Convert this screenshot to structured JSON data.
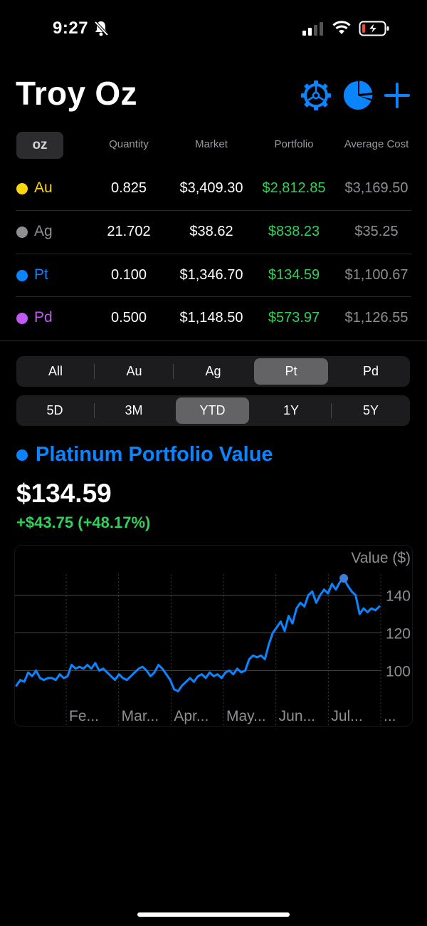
{
  "status_bar": {
    "time": "9:27",
    "icons": [
      "bell-off-icon",
      "signal-icon",
      "wifi-icon",
      "battery-charging-icon"
    ]
  },
  "header": {
    "title": "Troy Oz",
    "buttons": [
      "gear-icon",
      "pie-chart-icon",
      "plus-icon"
    ],
    "accent_color": "#0a84ff"
  },
  "table": {
    "unit": "oz",
    "columns": [
      "Quantity",
      "Market",
      "Portfolio",
      "Average Cost"
    ],
    "rows": [
      {
        "symbol": "Au",
        "color": "#ffd60a",
        "quantity": "0.825",
        "market": "$3,409.30",
        "portfolio": "$2,812.85",
        "average_cost": "$3,169.50"
      },
      {
        "symbol": "Ag",
        "color": "#8e8e93",
        "quantity": "21.702",
        "market": "$38.62",
        "portfolio": "$838.23",
        "average_cost": "$35.25"
      },
      {
        "symbol": "Pt",
        "color": "#0a84ff",
        "quantity": "0.100",
        "market": "$1,346.70",
        "portfolio": "$134.59",
        "average_cost": "$1,100.67"
      },
      {
        "symbol": "Pd",
        "color": "#bf5af2",
        "quantity": "0.500",
        "market": "$1,148.50",
        "portfolio": "$573.97",
        "average_cost": "$1,126.55"
      }
    ],
    "portfolio_color": "#30d158"
  },
  "metal_filter": {
    "options": [
      "All",
      "Au",
      "Ag",
      "Pt",
      "Pd"
    ],
    "selected": "Pt"
  },
  "range_filter": {
    "options": [
      "5D",
      "3M",
      "YTD",
      "1Y",
      "5Y"
    ],
    "selected": "YTD"
  },
  "summary": {
    "title": "Platinum Portfolio Value",
    "value": "$134.59",
    "change": "+$43.75 (+48.17%)"
  },
  "chart_data": {
    "type": "line",
    "xlabel": "",
    "ylabel": "Value ($)",
    "y_ticks": [
      100,
      120,
      140
    ],
    "x_tick_labels": [
      "Fe...",
      "Mar...",
      "Apr...",
      "May...",
      "Jun...",
      "Jul...",
      "..."
    ],
    "ylim": [
      85,
      155
    ],
    "line_color": "#0a84ff",
    "series": [
      {
        "values": [
          92,
          95,
          94,
          99,
          97,
          100,
          96,
          95,
          96,
          96,
          95,
          98,
          96,
          97,
          103,
          101,
          102,
          101,
          103,
          101,
          104,
          100,
          101,
          99,
          97,
          95,
          98,
          96,
          95,
          97,
          99,
          101,
          102,
          100,
          97,
          99,
          103,
          101,
          98,
          95,
          90,
          89,
          92,
          94,
          96,
          94,
          97,
          98,
          96,
          99,
          97,
          98,
          96,
          99,
          100,
          98,
          101,
          99,
          100,
          106,
          108,
          107,
          108,
          106,
          114,
          120,
          123,
          126,
          121,
          129,
          125,
          133,
          136,
          134,
          140,
          142,
          136,
          140,
          143,
          141,
          146,
          143,
          147,
          149,
          145,
          142,
          140,
          130,
          133,
          131,
          133,
          132,
          134
        ]
      }
    ],
    "highlight_point": {
      "x_index": 83,
      "value": 149
    }
  }
}
